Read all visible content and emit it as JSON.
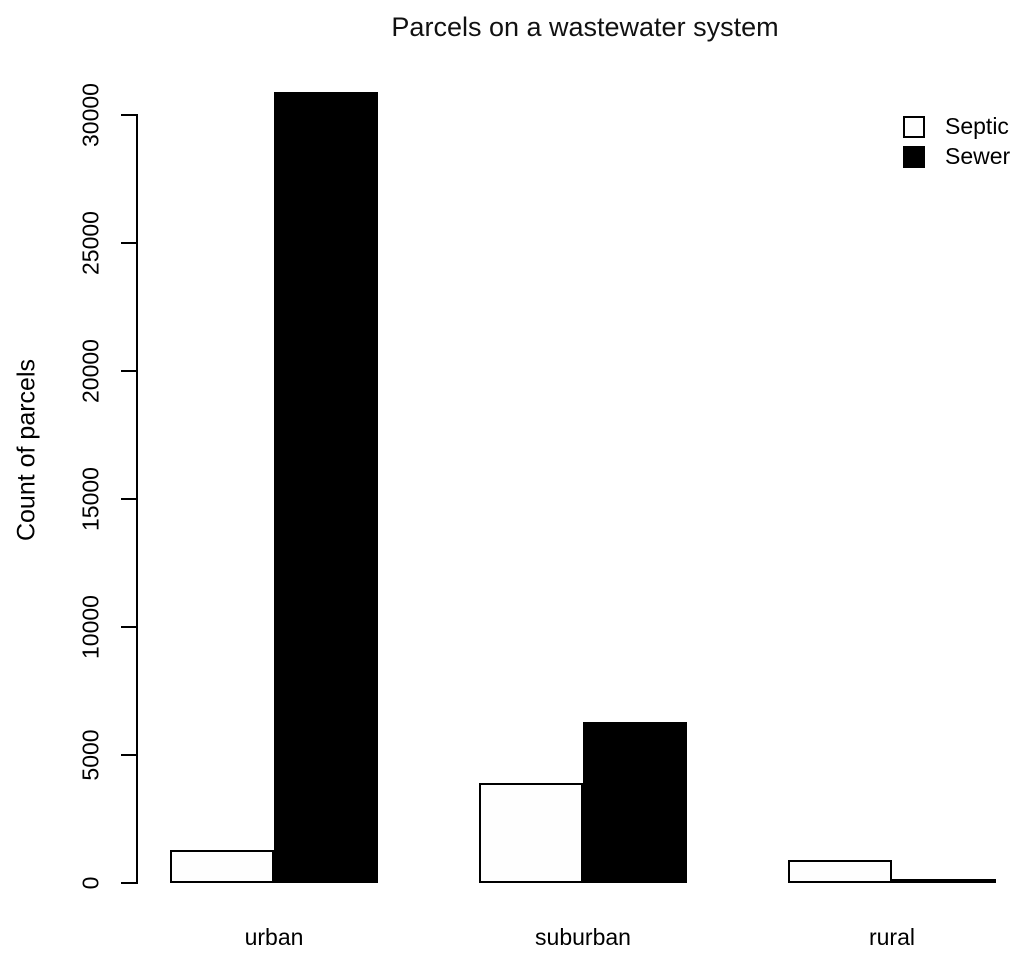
{
  "chart_data": {
    "type": "bar",
    "title": "Parcels on a wastewater system",
    "xlabel": "",
    "ylabel": "Count of parcels",
    "categories": [
      "urban",
      "suburban",
      "rural"
    ],
    "series": [
      {
        "name": "Septic",
        "fill": "#fefefe",
        "values": [
          1300,
          3900,
          900
        ]
      },
      {
        "name": "Sewer",
        "fill": "#000000",
        "values": [
          30900,
          6300,
          150
        ]
      }
    ],
    "ylim": [
      0,
      30000
    ],
    "yticks": [
      0,
      5000,
      10000,
      15000,
      20000,
      25000,
      30000
    ],
    "ytick_labels": [
      "0",
      "5000",
      "10000",
      "15000",
      "20000",
      "25000",
      "30000"
    ],
    "grid": false,
    "legend_position": "top-right",
    "bar_style": "grouped-beside, black outlined bars, R base graphics"
  },
  "colors": {
    "background": "#ffffff",
    "axis": "#000000",
    "text": "#000000",
    "septic_fill": "#fefefe",
    "sewer_fill": "#000000"
  }
}
